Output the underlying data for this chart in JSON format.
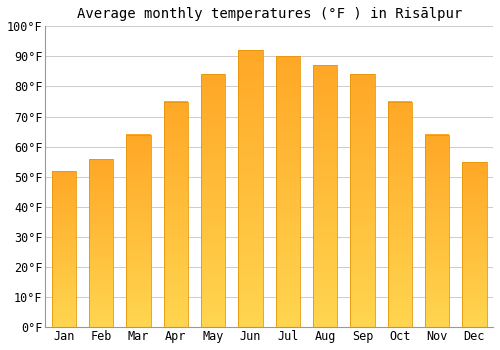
{
  "title": "Average monthly temperatures (°F ) in Risālpur",
  "months": [
    "Jan",
    "Feb",
    "Mar",
    "Apr",
    "May",
    "Jun",
    "Jul",
    "Aug",
    "Sep",
    "Oct",
    "Nov",
    "Dec"
  ],
  "values": [
    52,
    56,
    64,
    75,
    84,
    92,
    90,
    87,
    84,
    75,
    64,
    55
  ],
  "bar_color_top": "#FFA726",
  "bar_color_bottom": "#FFD54F",
  "bar_edge_color": "#E6960A",
  "background_color": "#ffffff",
  "plot_bg_color": "#f9f9f9",
  "grid_color": "#cccccc",
  "ylim": [
    0,
    100
  ],
  "yticks": [
    0,
    10,
    20,
    30,
    40,
    50,
    60,
    70,
    80,
    90,
    100
  ],
  "ytick_labels": [
    "0°F",
    "10°F",
    "20°F",
    "30°F",
    "40°F",
    "50°F",
    "60°F",
    "70°F",
    "80°F",
    "90°F",
    "100°F"
  ],
  "title_fontsize": 10,
  "tick_fontsize": 8.5
}
